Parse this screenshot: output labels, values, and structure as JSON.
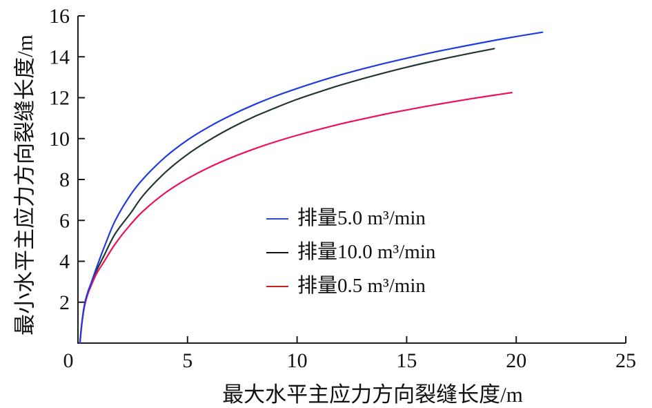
{
  "chart_data": {
    "type": "line",
    "title": "",
    "xlabel": "最大水平主应力方向裂缝长度/m",
    "ylabel": "最小水平主应力方向裂缝长度/m",
    "xlim": [
      0,
      25
    ],
    "ylim": [
      0,
      16
    ],
    "xticks": [
      0,
      5,
      10,
      15,
      20,
      25
    ],
    "yticks": [
      2,
      4,
      6,
      8,
      10,
      12,
      14,
      16
    ],
    "grid": false,
    "legend_position": "inside-center-right",
    "axis_color": "#1a1a1a",
    "tick_label_color": "#111111",
    "draw_order": [
      1,
      2,
      0
    ],
    "series": [
      {
        "name": "rate-5.0",
        "label": "排量5.0 m³/min",
        "color": "#1f3be0",
        "legend_color": "#2f45cc",
        "points": [
          [
            0.09,
            0
          ],
          [
            0.18,
            1.0
          ],
          [
            0.3,
            1.9
          ],
          [
            0.45,
            2.5
          ],
          [
            0.62,
            3.0
          ],
          [
            0.85,
            3.7
          ],
          [
            1.2,
            4.7
          ],
          [
            1.7,
            5.99
          ],
          [
            2.4,
            7.25
          ],
          [
            3,
            8.06
          ],
          [
            4,
            9.11
          ],
          [
            5,
            9.93
          ],
          [
            6,
            10.59
          ],
          [
            7,
            11.15
          ],
          [
            8,
            11.64
          ],
          [
            9,
            12.07
          ],
          [
            10,
            12.45
          ],
          [
            11,
            12.8
          ],
          [
            12,
            13.12
          ],
          [
            13,
            13.41
          ],
          [
            14,
            13.68
          ],
          [
            15,
            13.93
          ],
          [
            16,
            14.17
          ],
          [
            17,
            14.39
          ],
          [
            18,
            14.6
          ],
          [
            19,
            14.8
          ],
          [
            20,
            14.99
          ],
          [
            21.2,
            15.2
          ]
        ]
      },
      {
        "name": "rate-10.0",
        "label": "排量10.0 m³/min",
        "color": "#233732",
        "legend_color": "#111111",
        "points": [
          [
            0.09,
            0
          ],
          [
            0.18,
            1.0
          ],
          [
            0.3,
            1.85
          ],
          [
            0.45,
            2.45
          ],
          [
            0.62,
            2.95
          ],
          [
            0.85,
            3.55
          ],
          [
            1.2,
            4.3
          ],
          [
            1.7,
            5.35
          ],
          [
            2.4,
            6.35
          ],
          [
            3,
            7.25
          ],
          [
            4,
            8.36
          ],
          [
            5,
            9.23
          ],
          [
            6,
            9.93
          ],
          [
            7,
            10.53
          ],
          [
            8,
            11.05
          ],
          [
            9,
            11.5
          ],
          [
            10,
            11.92
          ],
          [
            11,
            12.28
          ],
          [
            12,
            12.62
          ],
          [
            13,
            12.93
          ],
          [
            14,
            13.22
          ],
          [
            15,
            13.49
          ],
          [
            16,
            13.74
          ],
          [
            17,
            13.97
          ],
          [
            18,
            14.19
          ],
          [
            19,
            14.4
          ]
        ]
      },
      {
        "name": "rate-0.5",
        "label": "排量0.5 m³/min",
        "color": "#f01055",
        "legend_color": "#cc1f1f",
        "points": [
          [
            0.09,
            0
          ],
          [
            0.18,
            0.95
          ],
          [
            0.3,
            1.8
          ],
          [
            0.45,
            2.4
          ],
          [
            0.62,
            2.85
          ],
          [
            0.85,
            3.4
          ],
          [
            1.2,
            4.0
          ],
          [
            1.7,
            4.85
          ],
          [
            2.4,
            5.8
          ],
          [
            3,
            6.48
          ],
          [
            4,
            7.36
          ],
          [
            5,
            8.04
          ],
          [
            6,
            8.6
          ],
          [
            7,
            9.07
          ],
          [
            8,
            9.48
          ],
          [
            9,
            9.84
          ],
          [
            10,
            10.16
          ],
          [
            11,
            10.45
          ],
          [
            12,
            10.72
          ],
          [
            13,
            10.96
          ],
          [
            14,
            11.19
          ],
          [
            15,
            11.4
          ],
          [
            16,
            11.6
          ],
          [
            17,
            11.78
          ],
          [
            18,
            11.96
          ],
          [
            19,
            12.12
          ],
          [
            19.8,
            12.25
          ]
        ]
      }
    ]
  }
}
